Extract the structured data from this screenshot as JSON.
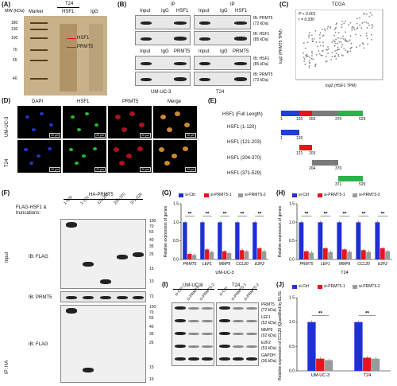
{
  "panels": {
    "A": "(A)",
    "B": "(B)",
    "C": "(C)",
    "D": "(D)",
    "E": "(E)",
    "F": "(F)",
    "G": "(G)",
    "H": "(H)",
    "I": "(I)",
    "J": "(J)"
  },
  "panelA": {
    "mw_header": "MW (kDa)",
    "col_marker": "Marker",
    "t24": "T24",
    "col_hsf1": "HSF1",
    "col_igg": "IgG",
    "ladder": [
      "180",
      "130",
      "100",
      "70",
      "55",
      "40"
    ],
    "arrow_hsf1": "HSF1",
    "arrow_prmt5": "PRMT5"
  },
  "panelB": {
    "ip": "IP",
    "input": "Input",
    "igg": "IgG",
    "hsf1": "HSF1",
    "prmt5": "PRMT5",
    "ib_prmt5": "IB: PRMT5",
    "ib_prmt5_kda": "(72 kDa)",
    "ib_hsf1": "IB: HSF1",
    "ib_hsf1_kda": "(85 kDa)",
    "cell1": "UM-UC-3",
    "cell2": "T24"
  },
  "panelC": {
    "title": "TCGA",
    "p": "P < 0.001",
    "r": "r = 0.330",
    "xlabel": "log2 (HSF1 TPM)",
    "ylabel": "log2 (PRMT5 TPM)"
  },
  "panelD": {
    "cols": [
      "DAPI",
      "HSF1",
      "PRMT5",
      "Merge"
    ],
    "rows": [
      "UM-UC-3",
      "T24"
    ],
    "scale": "20 μm"
  },
  "panelE": {
    "rows": [
      {
        "label": "HSF1 (Full Length)"
      },
      {
        "label": "HSF1 (1-120)"
      },
      {
        "label": "HSF1 (121-203)"
      },
      {
        "label": "HSF1 (204-370)"
      },
      {
        "label": "HSF1 (371-529)"
      }
    ],
    "ticks_full": [
      "1",
      "120",
      "203",
      "370",
      "529"
    ],
    "ticks_r2": [
      "1",
      "120"
    ],
    "ticks_r3": [
      "121",
      "203"
    ],
    "ticks_r4": [
      "204",
      "370"
    ],
    "ticks_r5": [
      "371",
      "529"
    ],
    "colors": {
      "d1": "#1f3fd6",
      "d2": "#e8141c",
      "d3": "#7a7a7a",
      "d4": "#2ab34a"
    }
  },
  "panelF": {
    "ha": "HA-PRMT5",
    "flag": "FLAG-HSF1 &",
    "truncations": "truncations:",
    "lanes": [
      "1-529",
      "1-120",
      "121-203",
      "204-370",
      "371-529"
    ],
    "input": "Input",
    "ip_ha": "IP: HA",
    "ib_flag": "IB: FLAG",
    "ib_prmt5": "IB: PRMT5",
    "mw_top": [
      "100",
      "70",
      "55",
      "40",
      "35",
      "25",
      "15",
      "10"
    ],
    "mw_mid": "72",
    "mw_bot": [
      "100",
      "70",
      "55",
      "40",
      "35",
      "25",
      "15",
      "10"
    ]
  },
  "legend": {
    "ctrl": "si-Ctrl",
    "p1": "si-PRMT5-1",
    "p2": "si-PRMT5-2",
    "c_ctrl": "#1f2fd6",
    "c_p1": "#e8141c",
    "c_p2": "#9a9a9a"
  },
  "panelG": {
    "ylabel": "Relative expression of genes",
    "yticks": [
      "0.0",
      "0.5",
      "1.0",
      "1.5"
    ],
    "genes": [
      "PRMT5",
      "LEF1",
      "MMP9",
      "CCL20",
      "E2F2"
    ],
    "cell": "UM-UC-3",
    "sig": "**"
  },
  "panelH": {
    "ylabel": "Relative expression of genes",
    "yticks": [
      "0.0",
      "0.5",
      "1.0",
      "1.5"
    ],
    "genes": [
      "PRMT5",
      "LEF1",
      "MMP9",
      "CCL20",
      "E2F2"
    ],
    "cell": "T24",
    "sig": "**"
  },
  "panelI": {
    "cell1": "UM-UC-3",
    "cell2": "T24",
    "lanes": [
      "si-Ctrl",
      "si-PRMT5-1",
      "si-PRMT5-2"
    ],
    "proteins": [
      {
        "name": "PRMT5",
        "kda": "(72 kDa)"
      },
      {
        "name": "LEF1",
        "kda": "(52 kDa)"
      },
      {
        "name": "MMP9",
        "kda": "(92 kDa)"
      },
      {
        "name": "E2F2",
        "kda": "(53 kDa)"
      },
      {
        "name": "GAPDH",
        "kda": "(36 kDa)"
      }
    ]
  },
  "panelJ": {
    "ylabel": "Relative expression of CCL20 (Quantified by ELISA)",
    "yticks": [
      "0.0",
      "0.5",
      "1.0",
      "1.5"
    ],
    "cells": [
      "UM-UC-3",
      "T24"
    ],
    "sig": "**"
  },
  "chart_data": [
    {
      "type": "bar",
      "panel": "G",
      "categories": [
        "PRMT5",
        "LEF1",
        "MMP9",
        "CCL20",
        "E2F2"
      ],
      "series": [
        {
          "name": "si-Ctrl",
          "values": [
            1.0,
            1.0,
            1.0,
            1.0,
            1.0
          ]
        },
        {
          "name": "si-PRMT5-1",
          "values": [
            0.15,
            0.27,
            0.22,
            0.25,
            0.3
          ]
        },
        {
          "name": "si-PRMT5-2",
          "values": [
            0.12,
            0.2,
            0.17,
            0.22,
            0.22
          ]
        }
      ],
      "ylim": [
        0,
        1.5
      ],
      "xlabel": "UM-UC-3",
      "ylabel": "Relative expression of genes"
    },
    {
      "type": "bar",
      "panel": "H",
      "categories": [
        "PRMT5",
        "LEF1",
        "MMP9",
        "CCL20",
        "E2F2"
      ],
      "series": [
        {
          "name": "si-Ctrl",
          "values": [
            1.0,
            1.0,
            1.0,
            1.0,
            1.0
          ]
        },
        {
          "name": "si-PRMT5-1",
          "values": [
            0.22,
            0.3,
            0.27,
            0.25,
            0.3
          ]
        },
        {
          "name": "si-PRMT5-2",
          "values": [
            0.18,
            0.2,
            0.2,
            0.2,
            0.22
          ]
        }
      ],
      "ylim": [
        0,
        1.5
      ],
      "xlabel": "T24",
      "ylabel": "Relative expression of genes"
    },
    {
      "type": "bar",
      "panel": "J",
      "categories": [
        "UM-UC-3",
        "T24"
      ],
      "series": [
        {
          "name": "si-Ctrl",
          "values": [
            1.0,
            1.0
          ]
        },
        {
          "name": "si-PRMT5-1",
          "values": [
            0.25,
            0.27
          ]
        },
        {
          "name": "si-PRMT5-2",
          "values": [
            0.22,
            0.25
          ]
        }
      ],
      "ylim": [
        0,
        1.5
      ],
      "ylabel": "Relative expression of CCL20 (Quantified by ELISA)"
    },
    {
      "type": "scatter",
      "panel": "C",
      "title": "TCGA",
      "xlabel": "log2 (HSF1 TPM)",
      "ylabel": "log2 (PRMT5 TPM)",
      "r": 0.33
    }
  ]
}
